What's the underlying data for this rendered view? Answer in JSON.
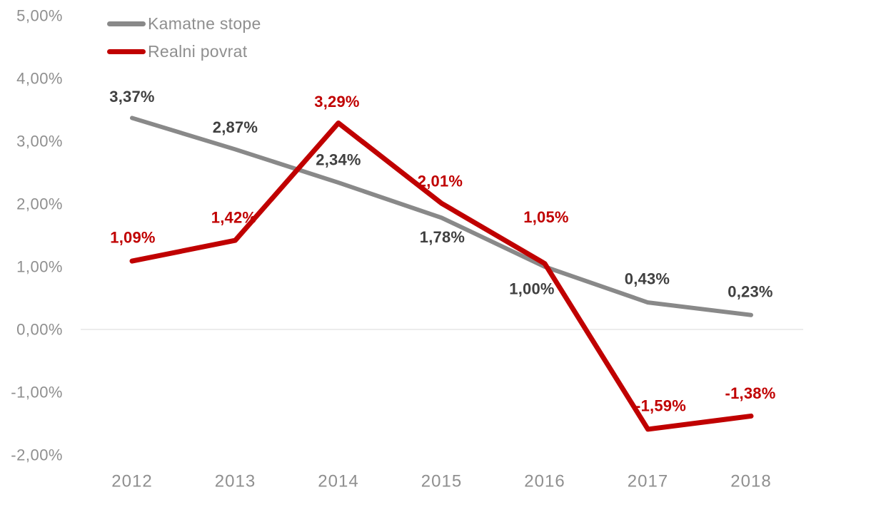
{
  "chart_data": {
    "type": "line",
    "title": "",
    "xlabel": "",
    "ylabel": "",
    "categories": [
      "2012",
      "2013",
      "2014",
      "2015",
      "2016",
      "2017",
      "2018"
    ],
    "series": [
      {
        "name": "Kamatne stope",
        "color": "#898989",
        "label_color": "#404040",
        "stroke_width": 6,
        "values": [
          3.37,
          2.87,
          2.34,
          1.78,
          1.0,
          0.43,
          0.23
        ],
        "labels": [
          "3,37%",
          "2,87%",
          "2,34%",
          "1,78%",
          "1,00%",
          "0,43%",
          "0,23%"
        ],
        "label_offsets": [
          [
            0,
            -30
          ],
          [
            0,
            -31
          ],
          [
            0,
            -32
          ],
          [
            1,
            27
          ],
          [
            -18,
            31
          ],
          [
            -1,
            -33
          ],
          [
            -1,
            -33
          ]
        ]
      },
      {
        "name": "Realni povrat",
        "color": "#C00000",
        "label_color": "#C00000",
        "stroke_width": 7,
        "values": [
          1.09,
          1.42,
          3.29,
          2.01,
          1.05,
          -1.59,
          -1.38
        ],
        "labels": [
          "1,09%",
          "1,42%",
          "3,29%",
          "2,01%",
          "1,05%",
          "-1,59%",
          "-1,38%"
        ],
        "label_offsets": [
          [
            1,
            -33
          ],
          [
            -2,
            -32
          ],
          [
            -2,
            -30
          ],
          [
            -2,
            -31
          ],
          [
            2,
            -65
          ],
          [
            18,
            -33
          ],
          [
            -1,
            -32
          ]
        ]
      }
    ],
    "y_axis": {
      "range": [
        -2,
        5
      ],
      "ticks": [
        {
          "value": 5,
          "label": "5,00%"
        },
        {
          "value": 4,
          "label": "4,00%"
        },
        {
          "value": 3,
          "label": "3,00%"
        },
        {
          "value": 2,
          "label": "2,00%"
        },
        {
          "value": 1,
          "label": "1,00%"
        },
        {
          "value": 0,
          "label": "0,00%"
        },
        {
          "value": -1,
          "label": "-1,00%"
        },
        {
          "value": -2,
          "label": "-2,00%"
        }
      ]
    },
    "grid": "zero-line-only",
    "legend_position": "top-left-inside",
    "colors": {
      "axis_text": "#8f8f8f",
      "grid_line": "#d9d9d9",
      "background": "#ffffff"
    }
  }
}
